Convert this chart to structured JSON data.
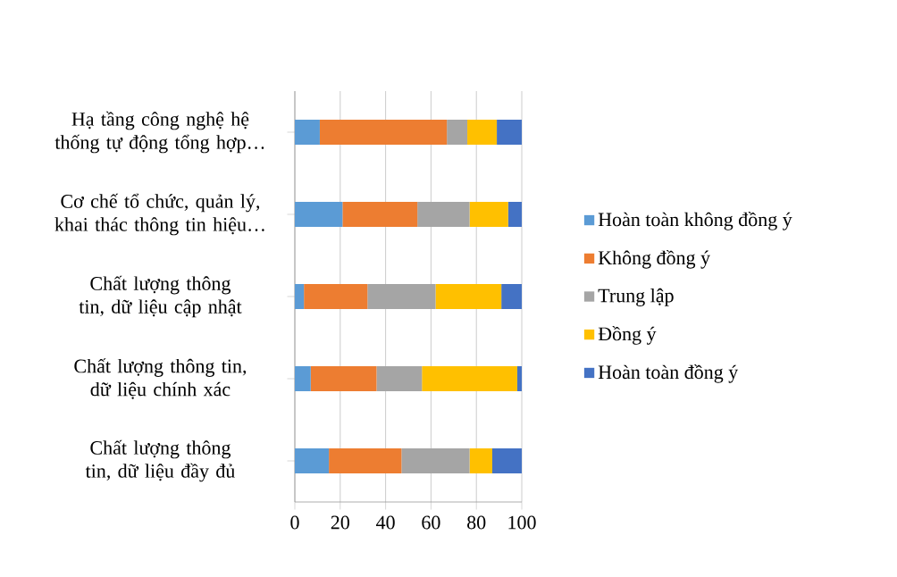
{
  "chart_data": {
    "type": "bar",
    "orientation": "horizontal",
    "stacked": true,
    "categories": [
      "Hạ tầng công nghệ hệ thống tự động tổng hợp…",
      "Cơ chế tổ chức, quản lý, khai thác thông tin hiệu…",
      "Chất lượng thông tin, dữ liệu cập nhật",
      "Chất lượng thông tin, dữ liệu chính xác",
      "Chất lượng thông tin, dữ liệu đầy đủ"
    ],
    "series": [
      {
        "name": "Hoàn toàn không đồng ý",
        "color": "#5b9bd5",
        "values": [
          11,
          21,
          4,
          7,
          15
        ]
      },
      {
        "name": "Không đồng ý",
        "color": "#ed7d31",
        "values": [
          56,
          33,
          28,
          29,
          32
        ]
      },
      {
        "name": "Trung lập",
        "color": "#a5a5a5",
        "values": [
          9,
          23,
          30,
          20,
          30
        ]
      },
      {
        "name": "Đồng ý",
        "color": "#ffc000",
        "values": [
          13,
          17,
          29,
          42,
          10
        ]
      },
      {
        "name": "Hoàn toàn đồng ý",
        "color": "#4472c4",
        "values": [
          11,
          6,
          9,
          2,
          13
        ]
      }
    ],
    "xlim": [
      0,
      100
    ],
    "xticks": [
      0,
      20,
      40,
      60,
      80,
      100
    ],
    "grid": "x",
    "legend": "right"
  }
}
